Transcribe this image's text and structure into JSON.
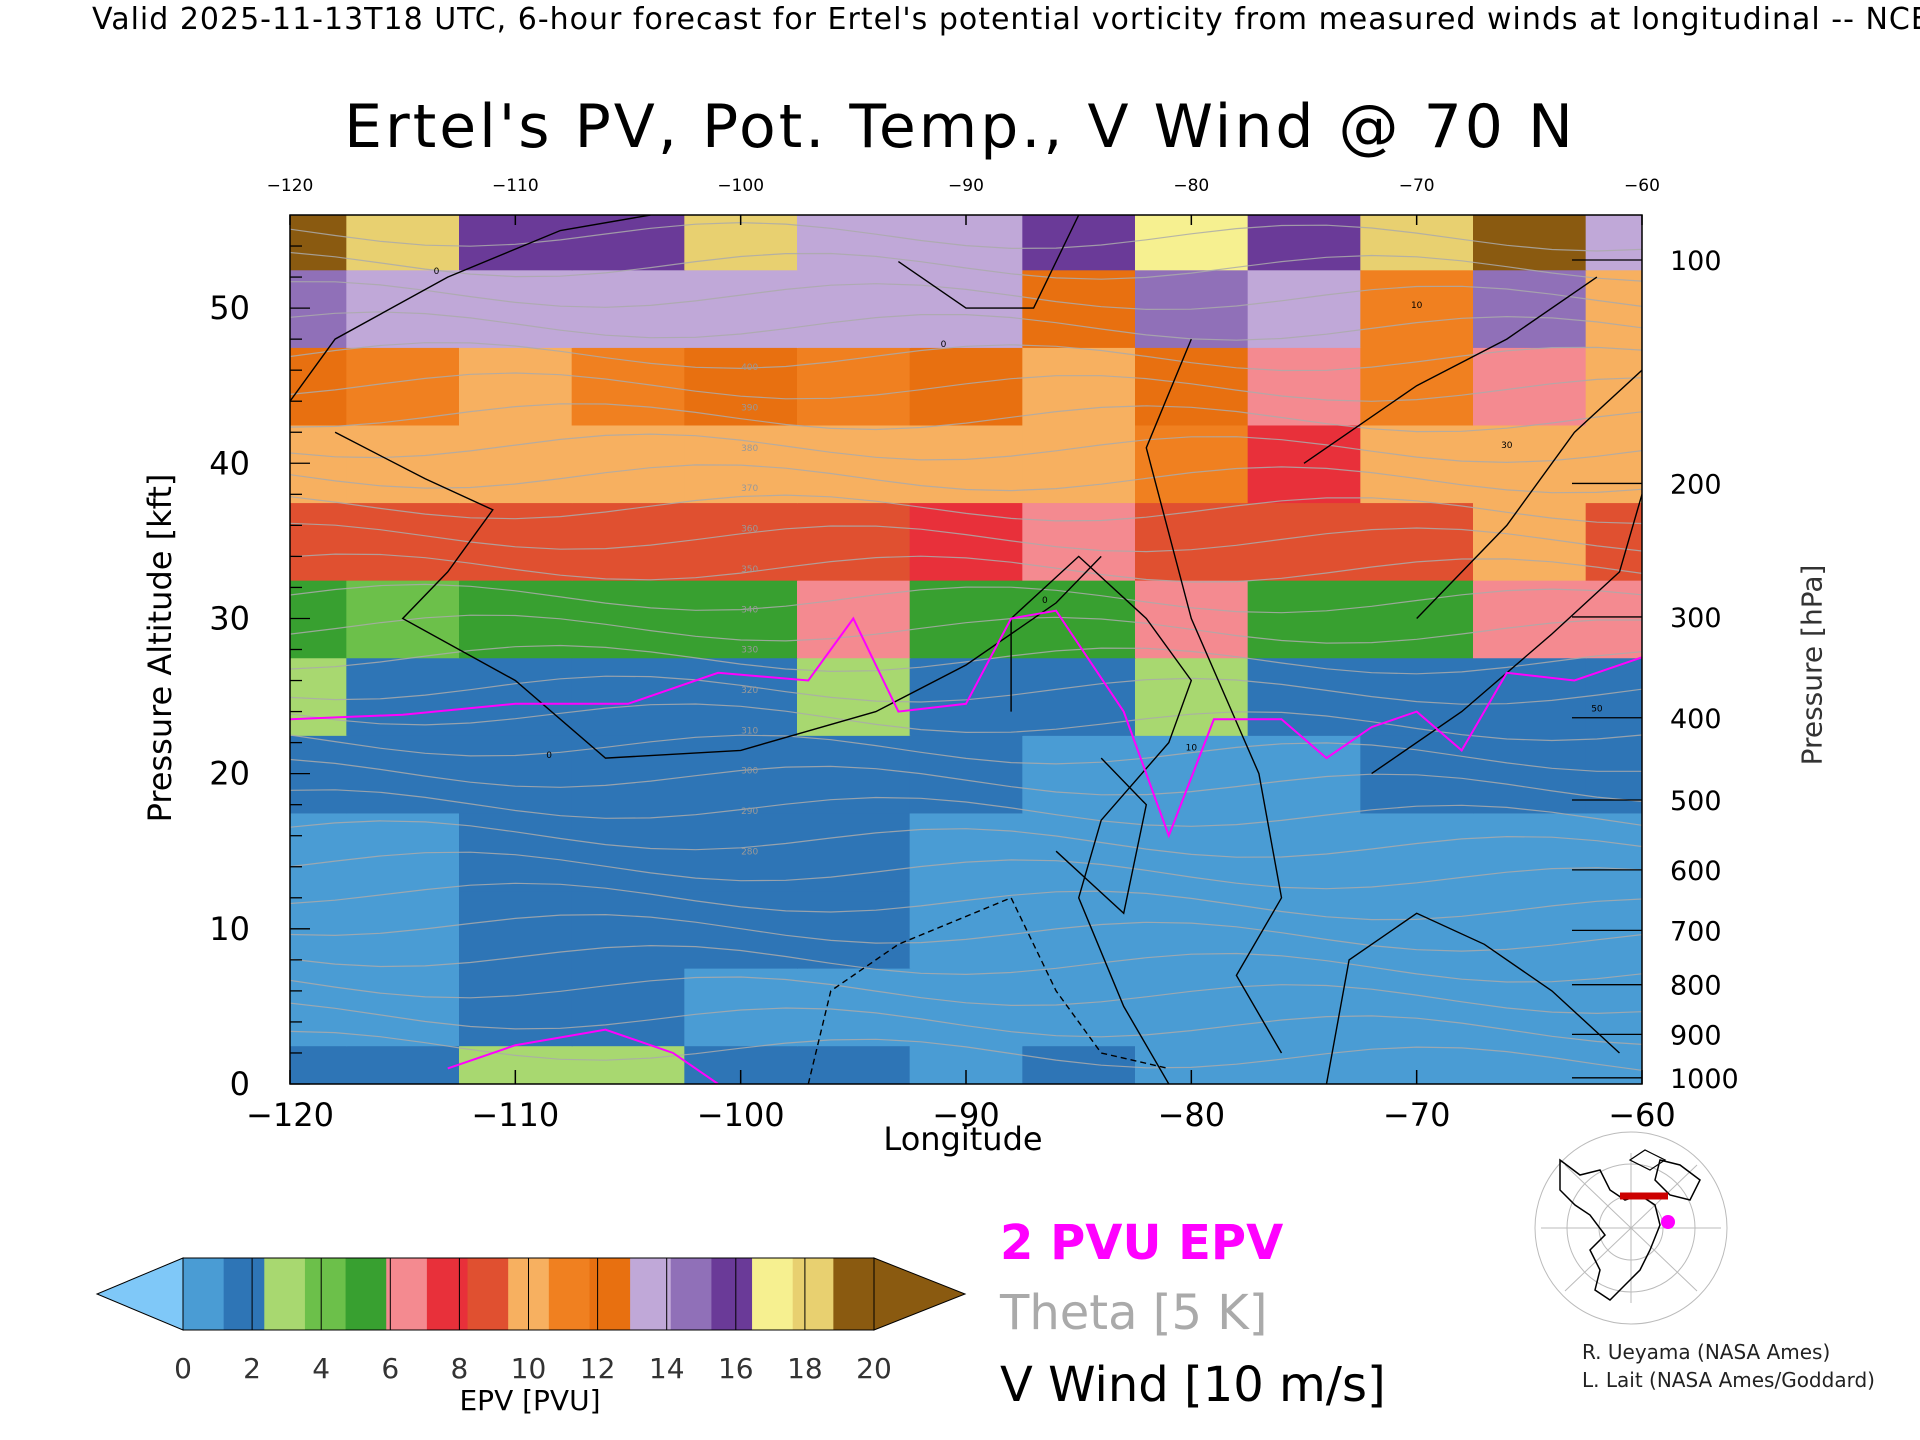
{
  "header": "Valid 2025-11-13T18 UTC, 6-hour forecast for Ertel's potential vorticity from measured winds at longitudinal -- NCE",
  "chart_data": {
    "type": "heatmap",
    "title": "Ertel's PV, Pot. Temp., V Wind @ 70 N",
    "xlabel": "Longitude",
    "ylabel": "Pressure Altitude [kft]",
    "y2label": "Pressure [hPa]",
    "xlim": [
      -120,
      -60
    ],
    "ylim": [
      0,
      56
    ],
    "x_ticks": [
      -120,
      -110,
      -100,
      -90,
      -80,
      -70,
      -60
    ],
    "x_ticks_top": [
      -120,
      -110,
      -100,
      -90,
      -80,
      -70,
      -60
    ],
    "y_ticks": [
      0,
      10,
      20,
      30,
      40,
      50
    ],
    "pressure_ticks": [
      {
        "label": "100",
        "kft": 53.1
      },
      {
        "label": "200",
        "kft": 38.7
      },
      {
        "label": "300",
        "kft": 30.1
      },
      {
        "label": "400",
        "kft": 23.6
      },
      {
        "label": "500",
        "kft": 18.3
      },
      {
        "label": "600",
        "kft": 13.8
      },
      {
        "label": "700",
        "kft": 9.9
      },
      {
        "label": "800",
        "kft": 6.4
      },
      {
        "label": "900",
        "kft": 3.2
      },
      {
        "label": "1000",
        "kft": 0.4
      }
    ],
    "tropopause_2pvu": {
      "x": [
        -120,
        -115,
        -110,
        -105,
        -101,
        -97,
        -95,
        -93,
        -90,
        -88,
        -86,
        -83,
        -81,
        -79,
        -76,
        -74,
        -72,
        -70,
        -68,
        -66,
        -63,
        -60
      ],
      "y": [
        23.5,
        23.8,
        24.5,
        24.5,
        26.5,
        26,
        30,
        24,
        24.5,
        30,
        30.5,
        24,
        16,
        23.5,
        23.5,
        21,
        23,
        24,
        21.5,
        26.5,
        26,
        27.5
      ]
    },
    "epv_field_pvu": {
      "x": [
        -120,
        -115,
        -110,
        -105,
        -100,
        -95,
        -90,
        -85,
        -80,
        -75,
        -70,
        -65,
        -60
      ],
      "y": [
        0,
        5,
        10,
        15,
        20,
        25,
        30,
        35,
        40,
        45,
        50,
        55
      ],
      "z": [
        [
          1.5,
          2.0,
          3.0,
          3.0,
          1.5,
          2.0,
          1.0,
          1.5,
          1.0,
          1.0,
          1.0,
          1.0,
          1.0
        ],
        [
          1.0,
          1.0,
          1.2,
          1.2,
          1.0,
          1.0,
          0.8,
          0.8,
          0.6,
          0.6,
          0.8,
          0.8,
          0.8
        ],
        [
          1.0,
          1.0,
          1.2,
          1.2,
          1.2,
          1.2,
          1.0,
          0.8,
          0.7,
          0.7,
          0.8,
          0.9,
          1.0
        ],
        [
          1.0,
          1.0,
          1.2,
          1.2,
          1.2,
          1.2,
          1.0,
          0.9,
          0.8,
          0.9,
          1.0,
          1.0,
          1.0
        ],
        [
          1.2,
          1.2,
          1.2,
          1.2,
          1.2,
          1.2,
          1.2,
          1.0,
          1.0,
          1.1,
          1.2,
          1.2,
          1.2
        ],
        [
          2.5,
          2.2,
          2.0,
          2.2,
          2.2,
          2.5,
          2.0,
          1.8,
          2.5,
          2.0,
          1.8,
          2.0,
          2.0
        ],
        [
          5.0,
          4.5,
          5.0,
          5.0,
          5.5,
          6.0,
          5.5,
          5.0,
          6.0,
          5.5,
          5.0,
          6.0,
          6.0
        ],
        [
          9.0,
          9.0,
          8.5,
          8.5,
          9.0,
          8.5,
          8.0,
          6.0,
          9.0,
          9.0,
          8.5,
          9.5,
          9.0
        ],
        [
          10.0,
          10.0,
          10.0,
          10.0,
          10.5,
          10.0,
          10.0,
          9.5,
          11.0,
          8.0,
          10.0,
          10.5,
          10.0
        ],
        [
          12.0,
          11.5,
          10.5,
          11.5,
          12.0,
          11.0,
          12.0,
          10.5,
          12.0,
          6.5,
          11.0,
          6.5,
          9.5
        ],
        [
          15.0,
          14.0,
          13.0,
          13.0,
          14.0,
          13.0,
          13.5,
          12.0,
          15.0,
          13.0,
          11.5,
          15.0,
          10.0
        ],
        [
          19.0,
          18.0,
          15.5,
          16.0,
          18.0,
          14.0,
          13.0,
          15.5,
          17.0,
          16.0,
          18.5,
          20.0,
          13.0
        ]
      ]
    },
    "v_wind_contours_label": "V Wind [10 m/s]",
    "theta_contours_label": "Theta [5 K]",
    "theta_labels": [
      "400",
      "390",
      "380",
      "370",
      "360",
      "350",
      "340",
      "330",
      "320",
      "310",
      "300",
      "290",
      "280"
    ],
    "v_wind_labels": [
      "0",
      "10",
      "30",
      "50"
    ],
    "colorbar": {
      "label": "EPV [PVU]",
      "ticks": [
        "0",
        "2",
        "4",
        "6",
        "8",
        "10",
        "12",
        "14",
        "16",
        "18",
        "20"
      ],
      "colors": [
        "#4a9cd4",
        "#2e75b6",
        "#a8d870",
        "#6cc04a",
        "#38a030",
        "#f48a90",
        "#e8303a",
        "#e05030",
        "#f7b060",
        "#f08020",
        "#e87010",
        "#c0a8d8",
        "#9070b8",
        "#6a3a98",
        "#f6f090",
        "#e8d070",
        "#8a5a10"
      ],
      "under_color": "#7fc8f8",
      "over_color": "#8a5a10"
    }
  },
  "legend": {
    "epv": "2 PVU EPV",
    "theta": "Theta [5 K]",
    "wind": "V Wind [10 m/s]"
  },
  "credits": [
    "R. Ueyama (NASA Ames)",
    "L. Lait (NASA Ames/Goddard)"
  ],
  "colors": {
    "tropopause": "#ff00ff",
    "theta": "#aaaaaa",
    "wind": "#000000",
    "map_point": "#ff00ff",
    "map_track": "#cc0000"
  }
}
